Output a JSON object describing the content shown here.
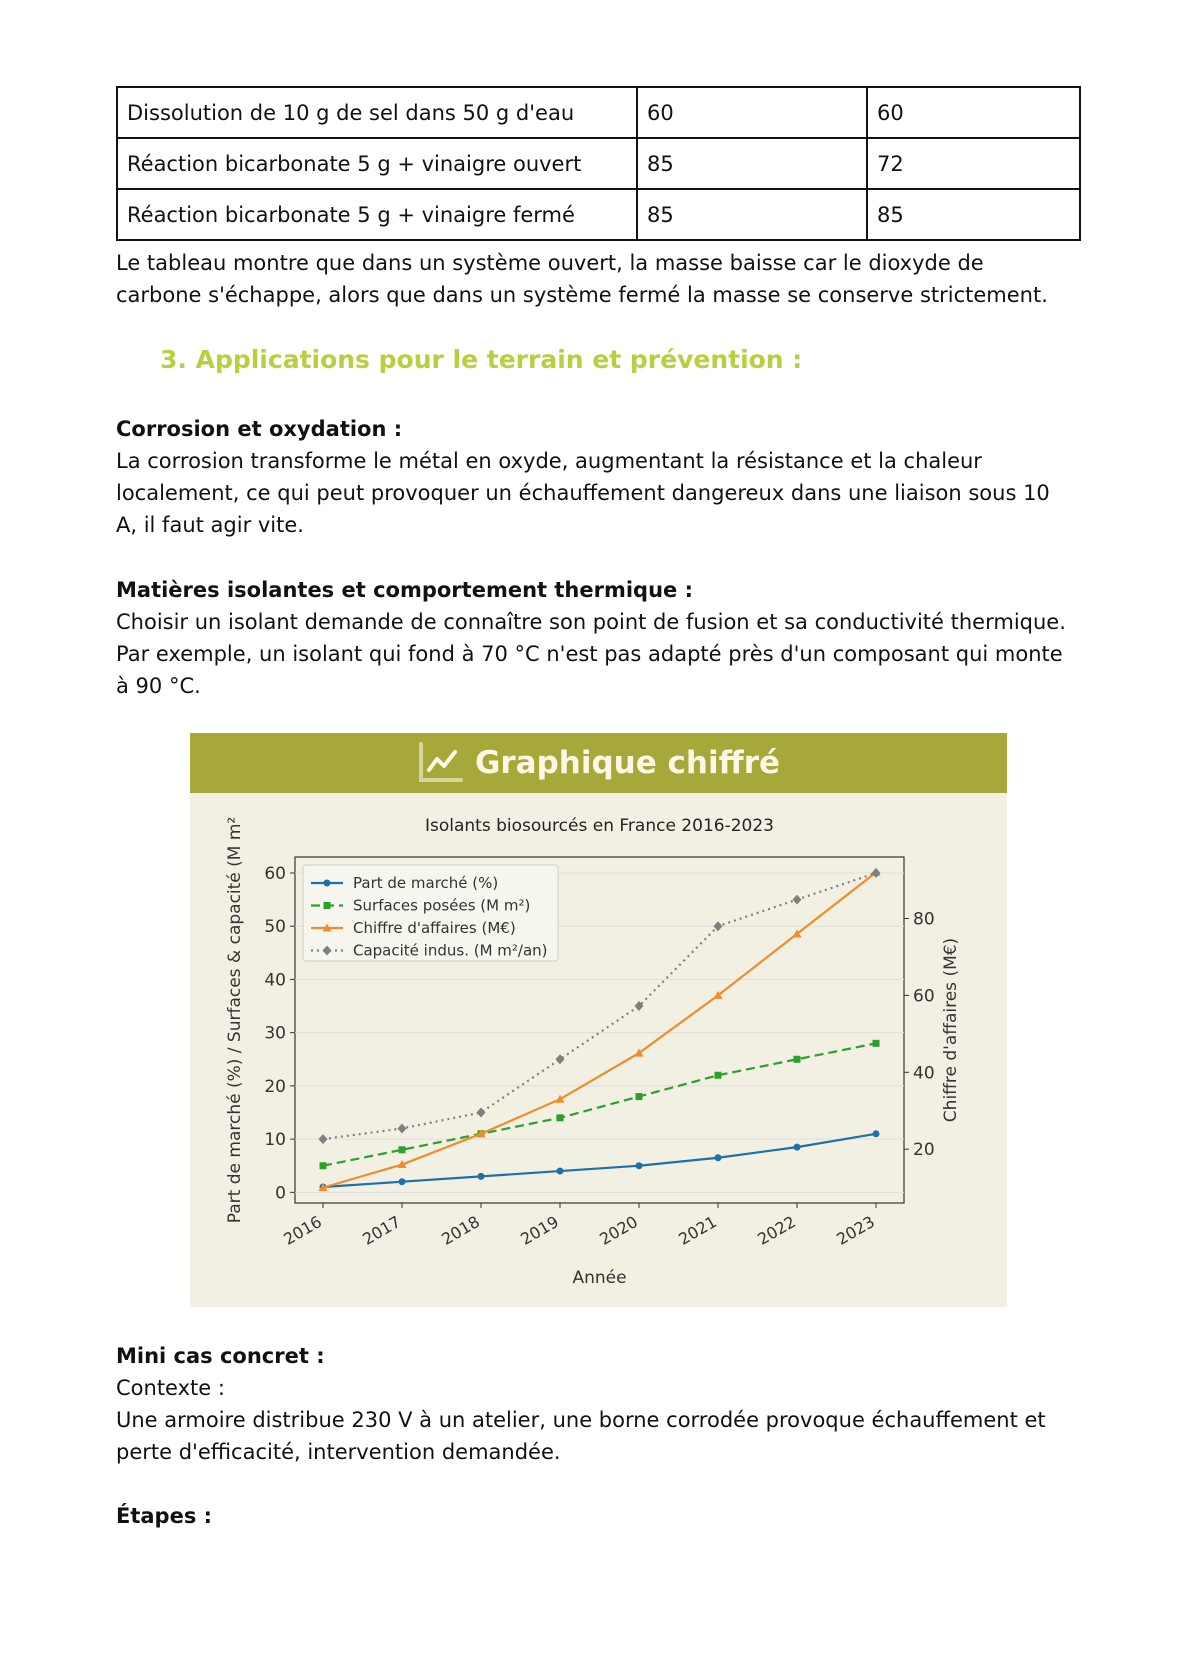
{
  "table": {
    "rows": [
      [
        "Dissolution de 10 g de sel dans 50 g d'eau",
        "60",
        "60"
      ],
      [
        "Réaction bicarbonate 5 g + vinaigre ouvert",
        "85",
        "72"
      ],
      [
        "Réaction bicarbonate 5 g + vinaigre fermé",
        "85",
        "85"
      ]
    ]
  },
  "para1": [
    "Le tableau montre que dans un système ouvert, la masse baisse car le dioxyde de",
    "carbone s'échappe, alors que dans un système fermé la masse se conserve strictement."
  ],
  "section_heading": "3.  Applications pour le terrain et prévention :",
  "corrosion": {
    "title": "Corrosion et oxydation :",
    "lines": [
      "La corrosion transforme le métal en oxyde, augmentant la résistance et la chaleur",
      "localement, ce qui peut provoquer un échauffement dangereux dans une liaison sous 10",
      "A, il faut agir vite."
    ]
  },
  "isolants": {
    "title": "Matières isolantes et comportement thermique :",
    "lines": [
      "Choisir un isolant demande de connaître son point de fusion et sa conductivité thermique.",
      "Par exemple, un isolant qui fond à 70 °C n'est pas adapté près d'un composant qui monte",
      "à 90 °C."
    ]
  },
  "chart_panel": {
    "banner_title": "Graphique chiffré",
    "banner_icon": "line-chart-icon",
    "banner_color": "#a6a83a",
    "background": "#f2f0e2"
  },
  "chart_data": {
    "type": "line",
    "title": "Isolants biosourcés en France 2016-2023",
    "xlabel": "Année",
    "ylabel": "Part de marché (%) / Surfaces & capacité (M m²",
    "y2label": "Chiffre d'affaires (M€)",
    "categories": [
      "2016",
      "2017",
      "2018",
      "2019",
      "2020",
      "2021",
      "2022",
      "2023"
    ],
    "ylim": [
      -2,
      63
    ],
    "yticks": [
      0,
      10,
      20,
      30,
      40,
      50,
      60
    ],
    "y2lim": [
      6,
      96
    ],
    "y2ticks": [
      20,
      40,
      60,
      80
    ],
    "grid": true,
    "legend": "top-left",
    "series": [
      {
        "name": "Part de marché (%)",
        "axis": "left",
        "color": "#1f6fa8",
        "style": "solid",
        "marker": "circle",
        "values": [
          1,
          2,
          3,
          4,
          5,
          6.5,
          8.5,
          11
        ]
      },
      {
        "name": "Surfaces posées (M m²)",
        "axis": "left",
        "color": "#2ca02c",
        "style": "dashed",
        "marker": "square",
        "values": [
          5,
          8,
          11,
          14,
          18,
          22,
          25,
          28
        ]
      },
      {
        "name": "Chiffre d'affaires (M€)",
        "axis": "right",
        "color": "#f08c2a",
        "style": "solid",
        "marker": "triangle",
        "values": [
          10,
          16,
          24,
          33,
          45,
          60,
          76,
          92
        ]
      },
      {
        "name": "Capacité indus. (M m²/an)",
        "axis": "left",
        "color": "#7f7f7f",
        "style": "dotted",
        "marker": "diamond",
        "values": [
          10,
          12,
          15,
          25,
          35,
          50,
          55,
          60
        ]
      }
    ]
  },
  "cas": {
    "title": "Mini cas concret :",
    "lines": [
      "Contexte :",
      "Une armoire distribue 230 V à un atelier, une borne corrodée provoque échauffement et",
      "perte d'efficacité, intervention demandée."
    ]
  },
  "etapes": {
    "title": "Étapes :"
  }
}
